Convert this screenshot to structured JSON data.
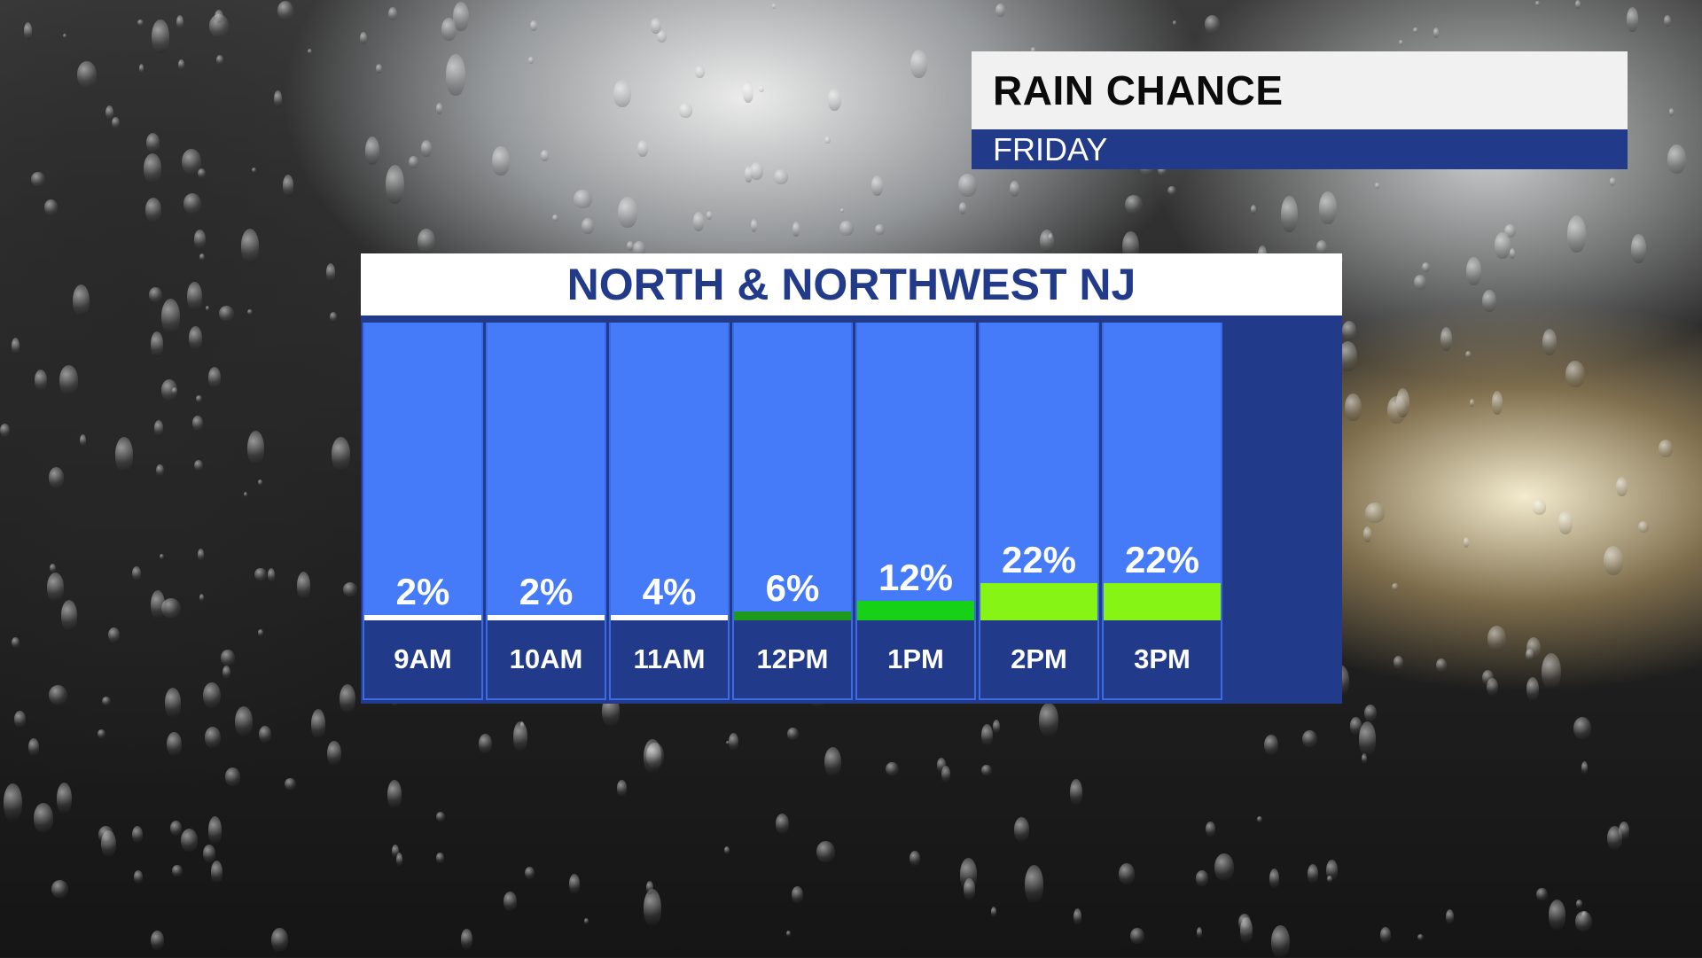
{
  "header": {
    "title": "RAIN CHANCE",
    "subtitle": "FRIDAY"
  },
  "colors": {
    "panel_navy": "#213a8a",
    "column_blue": "#457bf8",
    "low": "#ffffff",
    "mid_dark_green": "#1d9a1d",
    "green": "#17d117",
    "lime": "#86f516"
  },
  "chart_data": {
    "type": "bar",
    "title": "NORTH & NORTHWEST NJ",
    "categories": [
      "9AM",
      "10AM",
      "11AM",
      "12PM",
      "1PM",
      "2PM",
      "3PM"
    ],
    "values": [
      2,
      2,
      4,
      6,
      12,
      22,
      22
    ],
    "value_labels": [
      "2%",
      "2%",
      "4%",
      "6%",
      "12%",
      "22%",
      "22%"
    ],
    "bar_colors": [
      "#ffffff",
      "#ffffff",
      "#ffffff",
      "#1d9a1d",
      "#17d117",
      "#86f516",
      "#86f516"
    ],
    "ylim": [
      0,
      100
    ],
    "xlabel": "",
    "ylabel": ""
  }
}
